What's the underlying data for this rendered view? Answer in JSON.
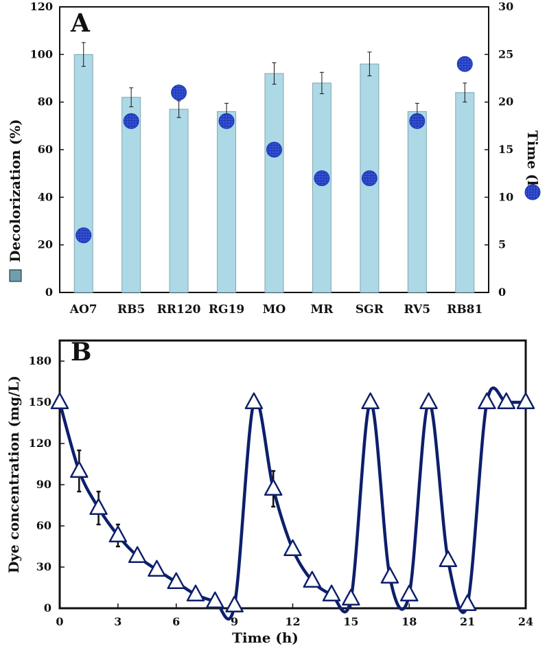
{
  "chart_data": [
    {
      "panel": "A",
      "type": "bar",
      "categories": [
        "AO7",
        "RB5",
        "RR120",
        "RG19",
        "MO",
        "MR",
        "SGR",
        "RV5",
        "RB81"
      ],
      "series": [
        {
          "name": "Decolorization (%)",
          "type": "bar",
          "axis": "left",
          "color": "#add8e6",
          "values": [
            100,
            82,
            77,
            76,
            92,
            88,
            96,
            76,
            84
          ],
          "errors": [
            5,
            4,
            3.5,
            3.5,
            4.5,
            4.5,
            5,
            3.5,
            4
          ]
        },
        {
          "name": "Time (h)",
          "type": "scatter",
          "axis": "right",
          "color": "#1f3fbf",
          "values": [
            6,
            18,
            21,
            18,
            15,
            12,
            12,
            18,
            24
          ]
        }
      ],
      "ylabel": "Decolorization (%)",
      "y2label": "Time (h)",
      "ylim": [
        0,
        120
      ],
      "y2lim": [
        0,
        30
      ],
      "yticks": [
        "0",
        "20",
        "40",
        "60",
        "80",
        "100",
        "120"
      ],
      "y2ticks": [
        "0",
        "5",
        "10",
        "15",
        "20",
        "25",
        "30"
      ]
    },
    {
      "panel": "B",
      "type": "line",
      "x": [
        0,
        1,
        2,
        3,
        4,
        5,
        6,
        7,
        8,
        9,
        10,
        11,
        12,
        13,
        14,
        15,
        16,
        17,
        18,
        19,
        20,
        21,
        22,
        23,
        24
      ],
      "series": [
        {
          "name": "Dye concentration",
          "color": "#0d1f6b",
          "values": [
            150,
            100,
            73,
            53,
            38,
            28,
            19,
            10,
            5,
            2,
            150,
            87,
            43,
            20,
            10,
            7,
            150,
            23,
            10,
            150,
            35,
            3,
            150,
            150,
            150
          ],
          "errors": [
            0,
            15,
            12,
            8,
            0,
            0,
            0,
            0,
            0,
            0,
            0,
            13,
            0,
            0,
            0,
            0,
            0,
            0,
            0,
            0,
            0,
            0,
            0,
            0,
            0
          ]
        }
      ],
      "xlabel": "Time (h)",
      "ylabel": "Dye concentration (mg/L)",
      "xlim": [
        0,
        24
      ],
      "ylim": [
        0,
        195
      ],
      "xticks": [
        "0",
        "3",
        "6",
        "9",
        "12",
        "15",
        "18",
        "21",
        "24"
      ],
      "yticks": [
        "0",
        "30",
        "60",
        "90",
        "120",
        "150",
        "180"
      ]
    }
  ],
  "panels": {
    "a": "A",
    "b": "B"
  },
  "legend": {
    "bar_label": "Decolorization (%)",
    "dot_label": "Time (h)"
  }
}
